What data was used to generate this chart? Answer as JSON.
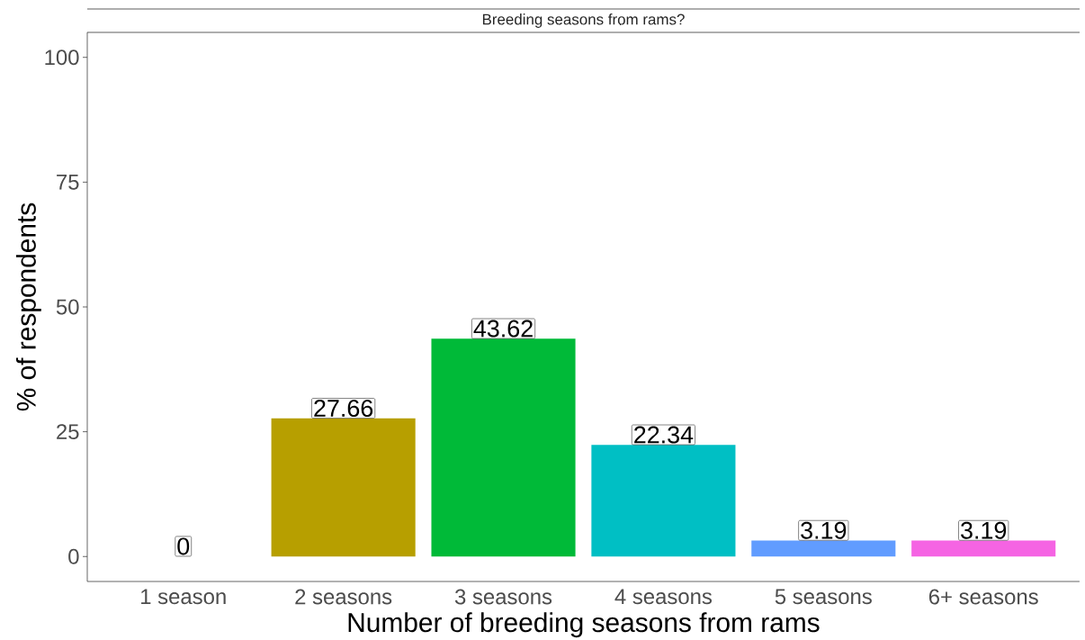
{
  "chart_data": {
    "type": "bar",
    "title": "Breeding seasons from rams?",
    "xlabel": "Number of breeding seasons from rams",
    "ylabel": "% of respondents",
    "categories": [
      "1 season",
      "2 seasons",
      "3 seasons",
      "4 seasons",
      "5 seasons",
      "6+ seasons"
    ],
    "values": [
      0,
      27.66,
      43.62,
      22.34,
      3.19,
      3.19
    ],
    "colors": [
      "#F8766D",
      "#B79F00",
      "#00BA38",
      "#00BFC4",
      "#619CFF",
      "#F564E3"
    ],
    "ylim": [
      -5,
      105
    ],
    "yticks": [
      0,
      25,
      50,
      75,
      100
    ],
    "data_labels": true
  }
}
